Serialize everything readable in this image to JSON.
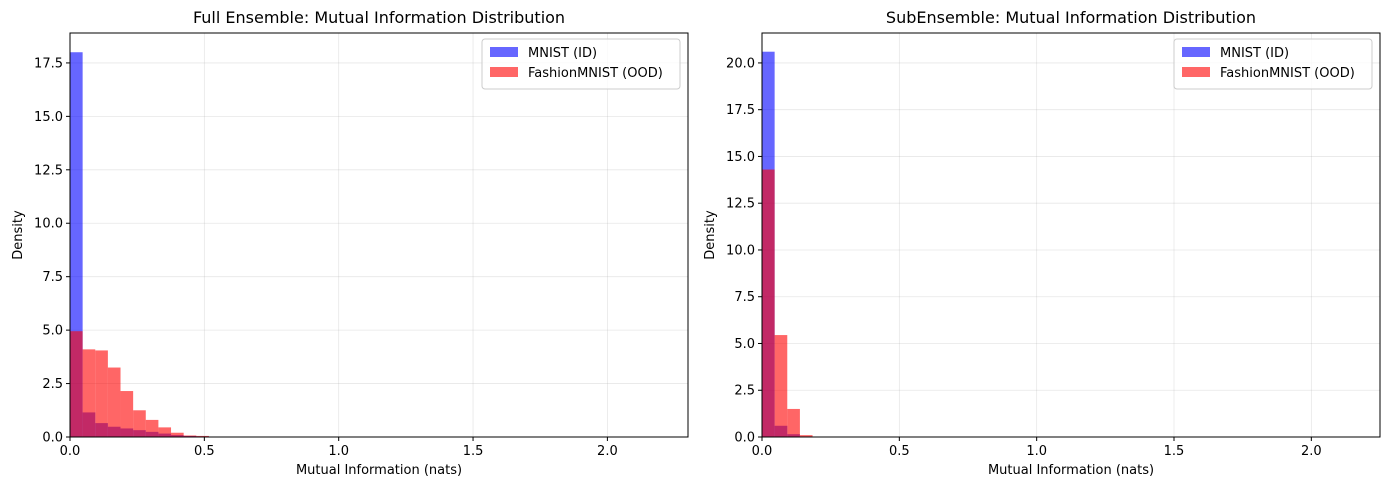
{
  "colors": {
    "id_color": "#0000ff",
    "ood_color": "#ff0000"
  },
  "chart_data": [
    {
      "type": "bar",
      "title": "Full Ensemble: Mutual Information Distribution",
      "xlabel": "Mutual Information (nats)",
      "ylabel": "Density",
      "xlim": [
        0,
        2.3
      ],
      "ylim": [
        0,
        18.9
      ],
      "grid": true,
      "legend": "top-right",
      "bar_alpha": 0.6,
      "x_ticks": [
        0,
        0.5,
        1.0,
        1.5,
        2.0
      ],
      "x_tick_labels": [
        "0.0",
        "0.5",
        "1.0",
        "1.5",
        "2.0"
      ],
      "y_ticks": [
        0,
        2.5,
        5.0,
        7.5,
        10.0,
        12.5,
        15.0,
        17.5
      ],
      "y_tick_labels": [
        "0.0",
        "2.5",
        "5.0",
        "7.5",
        "10.0",
        "12.5",
        "15.0",
        "17.5"
      ],
      "series": [
        {
          "name": "MNIST (ID)",
          "color": "#0000ff",
          "bin_edges": [
            0,
            0.047,
            0.094,
            0.141,
            0.188,
            0.235,
            0.282,
            0.329,
            0.376,
            0.423,
            0.47,
            0.517,
            0.564
          ],
          "values": [
            18.0,
            1.15,
            0.65,
            0.48,
            0.4,
            0.32,
            0.24,
            0.16,
            0.09,
            0.05,
            0.03,
            0.01
          ]
        },
        {
          "name": "FashionMNIST (OOD)",
          "color": "#ff0000",
          "bin_edges": [
            0,
            0.047,
            0.094,
            0.141,
            0.188,
            0.235,
            0.282,
            0.329,
            0.376,
            0.423,
            0.47,
            0.517,
            0.564
          ],
          "values": [
            4.95,
            4.1,
            4.05,
            3.25,
            2.15,
            1.25,
            0.8,
            0.45,
            0.2,
            0.07,
            0.05,
            0.02
          ]
        }
      ]
    },
    {
      "type": "bar",
      "title": "SubEnsemble: Mutual Information Distribution",
      "xlabel": "Mutual Information (nats)",
      "ylabel": "Density",
      "xlim": [
        0,
        2.25
      ],
      "ylim": [
        0,
        21.6
      ],
      "grid": true,
      "legend": "top-right",
      "bar_alpha": 0.6,
      "x_ticks": [
        0,
        0.5,
        1.0,
        1.5,
        2.0
      ],
      "x_tick_labels": [
        "0.0",
        "0.5",
        "1.0",
        "1.5",
        "2.0"
      ],
      "y_ticks": [
        0,
        2.5,
        5.0,
        7.5,
        10.0,
        12.5,
        15.0,
        17.5,
        20.0
      ],
      "y_tick_labels": [
        "0.0",
        "2.5",
        "5.0",
        "7.5",
        "10.0",
        "12.5",
        "15.0",
        "17.5",
        "20.0"
      ],
      "series": [
        {
          "name": "MNIST (ID)",
          "color": "#0000ff",
          "bin_edges": [
            0,
            0.046,
            0.092,
            0.138,
            0.184
          ],
          "values": [
            20.6,
            0.6,
            0.15,
            0.03
          ]
        },
        {
          "name": "FashionMNIST (OOD)",
          "color": "#ff0000",
          "bin_edges": [
            0,
            0.046,
            0.092,
            0.138,
            0.184
          ],
          "values": [
            14.3,
            5.45,
            1.5,
            0.1
          ]
        }
      ]
    }
  ]
}
